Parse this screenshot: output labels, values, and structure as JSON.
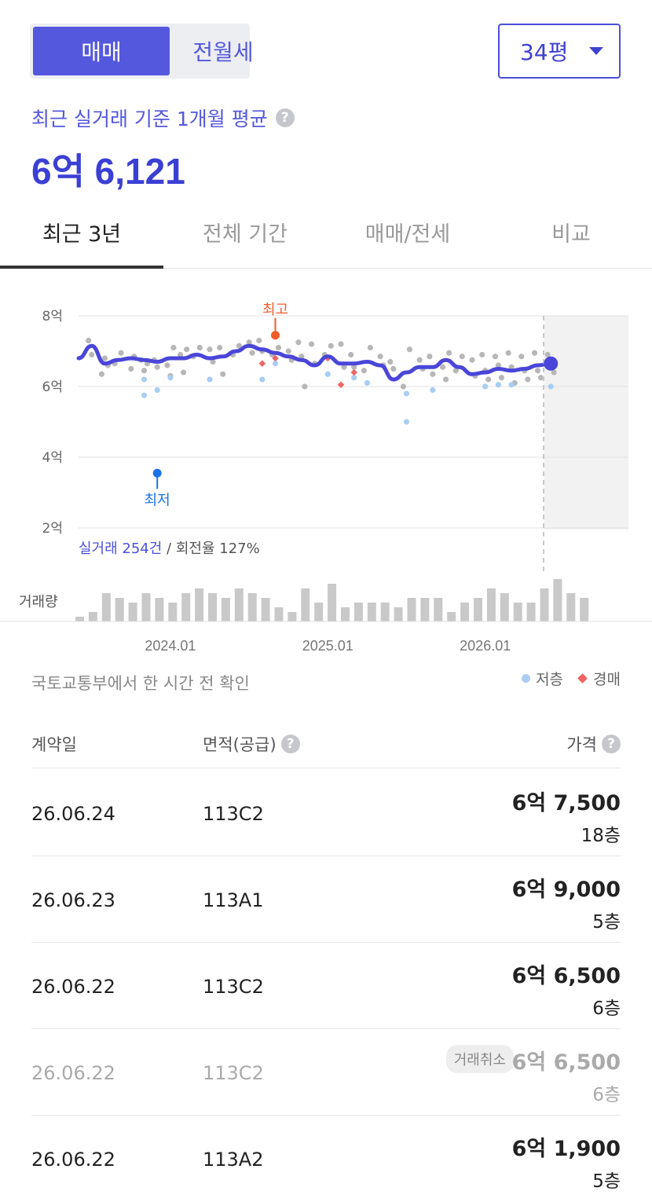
{
  "segment": {
    "active": "매매",
    "inactive": "전월세"
  },
  "size_dropdown": {
    "value": "34평"
  },
  "summary": {
    "subtitle": "최근 실거래 기준 1개월 평균",
    "help": "?",
    "average": "6억 6,121"
  },
  "tabs": [
    "최근 3년",
    "전체 기간",
    "매매/전세",
    "비교"
  ],
  "chart_data": {
    "type": "scatter",
    "y_unit": "억",
    "ylim": [
      2,
      8
    ],
    "y_ticks": [
      "8억",
      "6억",
      "4억",
      "2억"
    ],
    "x_ticks": [
      "2024.01",
      "2025.01",
      "2026.01"
    ],
    "annotations": {
      "high": "최고",
      "low": "최저"
    },
    "high_point": {
      "month": "2024.09",
      "price": 7.45
    },
    "low_point": {
      "month": "2023.12",
      "price": 3.55
    },
    "avg_line": {
      "months": [
        "2023.06",
        "2023.07",
        "2023.08",
        "2023.09",
        "2023.10",
        "2023.11",
        "2023.12",
        "2024.01",
        "2024.02",
        "2024.03",
        "2024.04",
        "2024.05",
        "2024.06",
        "2024.07",
        "2024.08",
        "2024.09",
        "2024.10",
        "2024.11",
        "2024.12",
        "2025.01",
        "2025.02",
        "2025.03",
        "2025.04",
        "2025.05",
        "2025.06",
        "2025.07",
        "2025.08",
        "2025.09",
        "2025.10",
        "2025.11",
        "2025.12",
        "2026.01",
        "2026.02",
        "2026.03",
        "2026.04",
        "2026.05",
        "2026.06"
      ],
      "values": [
        6.8,
        7.15,
        6.65,
        6.75,
        6.8,
        6.75,
        6.7,
        6.8,
        6.8,
        6.9,
        6.8,
        6.85,
        7.0,
        7.15,
        7.05,
        6.95,
        6.85,
        6.75,
        6.6,
        6.85,
        6.65,
        6.65,
        6.7,
        6.6,
        6.2,
        6.4,
        6.55,
        6.55,
        6.75,
        6.55,
        6.35,
        6.4,
        6.5,
        6.45,
        6.5,
        6.6,
        6.65
      ]
    },
    "transactions": [
      {
        "m": "2023.07",
        "p": 7.3
      },
      {
        "m": "2023.07",
        "p": 6.9
      },
      {
        "m": "2023.08",
        "p": 6.6
      },
      {
        "m": "2023.08",
        "p": 6.35
      },
      {
        "m": "2023.08",
        "p": 6.8
      },
      {
        "m": "2023.09",
        "p": 6.95
      },
      {
        "m": "2023.09",
        "p": 6.65
      },
      {
        "m": "2023.10",
        "p": 6.5
      },
      {
        "m": "2023.10",
        "p": 6.85
      },
      {
        "m": "2023.11",
        "p": 6.75
      },
      {
        "m": "2023.11",
        "p": 6.45
      },
      {
        "m": "2023.11",
        "p": 6.65
      },
      {
        "m": "2023.12",
        "p": 6.75
      },
      {
        "m": "2023.12",
        "p": 6.55
      },
      {
        "m": "2024.01",
        "p": 7.1
      },
      {
        "m": "2024.01",
        "p": 6.6
      },
      {
        "m": "2024.01",
        "p": 6.3
      },
      {
        "m": "2024.02",
        "p": 7.05
      },
      {
        "m": "2024.02",
        "p": 6.9
      },
      {
        "m": "2024.02",
        "p": 6.4
      },
      {
        "m": "2024.03",
        "p": 7.1
      },
      {
        "m": "2024.03",
        "p": 6.85
      },
      {
        "m": "2024.04",
        "p": 7.05
      },
      {
        "m": "2024.04",
        "p": 6.7
      },
      {
        "m": "2024.05",
        "p": 7.1
      },
      {
        "m": "2024.05",
        "p": 6.35
      },
      {
        "m": "2024.06",
        "p": 7.15
      },
      {
        "m": "2024.06",
        "p": 6.9
      },
      {
        "m": "2024.07",
        "p": 7.25
      },
      {
        "m": "2024.07",
        "p": 6.95
      },
      {
        "m": "2024.08",
        "p": 7.3
      },
      {
        "m": "2024.08",
        "p": 7.0
      },
      {
        "m": "2024.09",
        "p": 7.1
      },
      {
        "m": "2024.09",
        "p": 6.9
      },
      {
        "m": "2024.10",
        "p": 7.0
      },
      {
        "m": "2024.10",
        "p": 6.75
      },
      {
        "m": "2024.11",
        "p": 7.25
      },
      {
        "m": "2024.11",
        "p": 6.85
      },
      {
        "m": "2024.11",
        "p": 6.0
      },
      {
        "m": "2024.12",
        "p": 7.2
      },
      {
        "m": "2024.12",
        "p": 6.65
      },
      {
        "m": "2025.01",
        "p": 7.15
      },
      {
        "m": "2025.01",
        "p": 6.9
      },
      {
        "m": "2025.02",
        "p": 7.2
      },
      {
        "m": "2025.02",
        "p": 6.55
      },
      {
        "m": "2025.03",
        "p": 6.9
      },
      {
        "m": "2025.03",
        "p": 6.55
      },
      {
        "m": "2025.04",
        "p": 7.1
      },
      {
        "m": "2025.04",
        "p": 6.45
      },
      {
        "m": "2025.05",
        "p": 6.85
      },
      {
        "m": "2025.05",
        "p": 6.6
      },
      {
        "m": "2025.06",
        "p": 6.7
      },
      {
        "m": "2025.06",
        "p": 6.5
      },
      {
        "m": "2025.07",
        "p": 7.05
      },
      {
        "m": "2025.07",
        "p": 6.0
      },
      {
        "m": "2025.08",
        "p": 6.75
      },
      {
        "m": "2025.08",
        "p": 6.5
      },
      {
        "m": "2025.09",
        "p": 6.85
      },
      {
        "m": "2025.09",
        "p": 6.35
      },
      {
        "m": "2025.10",
        "p": 6.95
      },
      {
        "m": "2025.10",
        "p": 6.55
      },
      {
        "m": "2025.10",
        "p": 6.2
      },
      {
        "m": "2025.11",
        "p": 6.85
      },
      {
        "m": "2025.11",
        "p": 6.45
      },
      {
        "m": "2025.12",
        "p": 6.75
      },
      {
        "m": "2025.12",
        "p": 6.3
      },
      {
        "m": "2026.01",
        "p": 6.9
      },
      {
        "m": "2026.01",
        "p": 6.45
      },
      {
        "m": "2026.01",
        "p": 6.2
      },
      {
        "m": "2026.02",
        "p": 6.85
      },
      {
        "m": "2026.02",
        "p": 6.6
      },
      {
        "m": "2026.02",
        "p": 6.25
      },
      {
        "m": "2026.03",
        "p": 6.95
      },
      {
        "m": "2026.03",
        "p": 6.55
      },
      {
        "m": "2026.03",
        "p": 6.1
      },
      {
        "m": "2026.04",
        "p": 6.85
      },
      {
        "m": "2026.04",
        "p": 6.45
      },
      {
        "m": "2026.04",
        "p": 6.2
      },
      {
        "m": "2026.05",
        "p": 6.95
      },
      {
        "m": "2026.05",
        "p": 6.45
      },
      {
        "m": "2026.05",
        "p": 6.25
      },
      {
        "m": "2026.06",
        "p": 6.9
      },
      {
        "m": "2026.06",
        "p": 6.65
      },
      {
        "m": "2026.06",
        "p": 6.4
      }
    ],
    "low_floor_transactions": [
      {
        "m": "2023.11",
        "p": 6.2
      },
      {
        "m": "2023.11",
        "p": 5.75
      },
      {
        "m": "2023.12",
        "p": 5.9
      },
      {
        "m": "2024.01",
        "p": 6.25
      },
      {
        "m": "2024.04",
        "p": 6.2
      },
      {
        "m": "2024.08",
        "p": 6.2
      },
      {
        "m": "2024.09",
        "p": 6.65
      },
      {
        "m": "2025.01",
        "p": 6.35
      },
      {
        "m": "2025.03",
        "p": 6.25
      },
      {
        "m": "2025.04",
        "p": 6.1
      },
      {
        "m": "2025.07",
        "p": 5.8
      },
      {
        "m": "2025.07",
        "p": 5.0
      },
      {
        "m": "2025.09",
        "p": 5.9
      },
      {
        "m": "2026.01",
        "p": 6.0
      },
      {
        "m": "2026.02",
        "p": 6.05
      },
      {
        "m": "2026.03",
        "p": 6.05
      },
      {
        "m": "2026.06",
        "p": 6.0
      }
    ],
    "auction_transactions": [
      {
        "m": "2024.08",
        "p": 6.65
      },
      {
        "m": "2024.09",
        "p": 6.8
      },
      {
        "m": "2025.01",
        "p": 6.8
      },
      {
        "m": "2025.02",
        "p": 6.05
      },
      {
        "m": "2025.03",
        "p": 6.4
      }
    ],
    "volume": {
      "label": "거래량",
      "values": [
        1,
        2,
        6,
        5,
        4,
        6,
        5,
        4,
        6,
        7,
        6,
        5,
        7,
        6,
        5,
        3,
        2,
        7,
        4,
        8,
        3,
        4,
        4,
        4,
        3,
        5,
        5,
        5,
        2,
        4,
        5,
        7,
        6,
        4,
        4,
        7,
        9,
        6,
        5
      ]
    },
    "footer": {
      "count_label": "실거래 254건",
      "separator": " / ",
      "turnover_label": "회전율 127%"
    }
  },
  "source_text": "국토교통부에서 한 시간 전 확인",
  "legend": {
    "low_floor": "저층",
    "auction": "경매"
  },
  "colors": {
    "accent": "#4b4fe0",
    "line": "#4a46d9",
    "high": "#f05c28",
    "low": "#1a73e8"
  },
  "table": {
    "headers": {
      "date": "계약일",
      "area": "면적(공급)",
      "price": "가격",
      "help": "?"
    },
    "rows": [
      {
        "date": "26.06.24",
        "area": "113C2",
        "price": "6억 7,500",
        "floor": "18층",
        "cancelled": false,
        "badge": ""
      },
      {
        "date": "26.06.23",
        "area": "113A1",
        "price": "6억 9,000",
        "floor": "5층",
        "cancelled": false,
        "badge": ""
      },
      {
        "date": "26.06.22",
        "area": "113C2",
        "price": "6억 6,500",
        "floor": "6층",
        "cancelled": false,
        "badge": ""
      },
      {
        "date": "26.06.22",
        "area": "113C2",
        "price": "6억 6,500",
        "floor": "6층",
        "cancelled": true,
        "badge": "거래취소"
      },
      {
        "date": "26.06.22",
        "area": "113A2",
        "price": "6억 1,900",
        "floor": "5층",
        "cancelled": false,
        "badge": ""
      }
    ]
  }
}
